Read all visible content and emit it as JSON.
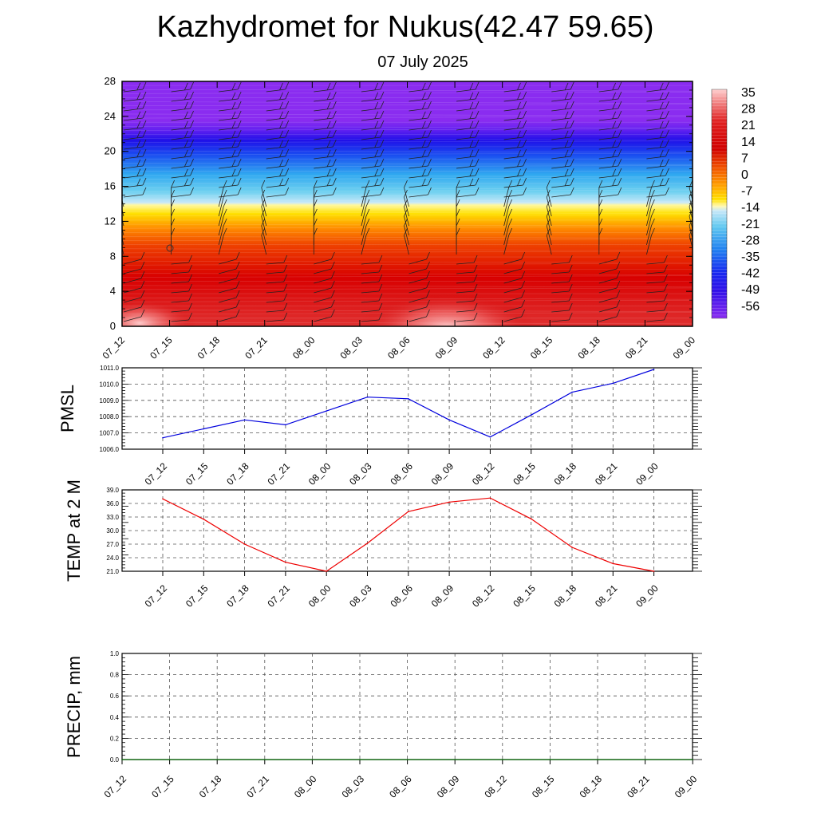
{
  "title": "Kazhydromet for Nukus(42.47 59.65)",
  "subtitle": "07 July 2025",
  "time_labels": [
    "07_12",
    "07_15",
    "07_18",
    "07_21",
    "08_00",
    "08_03",
    "08_06",
    "08_09",
    "08_12",
    "08_15",
    "08_18",
    "08_21",
    "09_00"
  ],
  "colors": {
    "pmsl_line": "#0000dd",
    "temp_line": "#ee0000",
    "precip_line": "#006400",
    "grid": "#555555"
  },
  "chart_data": [
    {
      "type": "heatmap",
      "ylim": [
        0,
        28
      ],
      "y_ticks": [
        0,
        4,
        8,
        12,
        16,
        20,
        24,
        28
      ],
      "x": [
        "07_12",
        "07_15",
        "07_18",
        "07_21",
        "08_00",
        "08_03",
        "08_06",
        "08_09",
        "08_12",
        "08_15",
        "08_18",
        "08_21",
        "09_00"
      ],
      "colorbar": {
        "labels": [
          "35",
          "28",
          "21",
          "14",
          "7",
          "0",
          "-7",
          "-14",
          "-21",
          "-28",
          "-35",
          "-42",
          "-49",
          "-56"
        ],
        "min": -60,
        "max": 38
      },
      "wind_barbs": true
    },
    {
      "type": "line",
      "ylabel": "PMSL",
      "ylim": [
        1006.0,
        1011.0
      ],
      "y_ticks": [
        "1006.0",
        "1007.0",
        "1008.0",
        "1009.0",
        "1010.0",
        "1011.0"
      ],
      "x": [
        "07_12",
        "07_15",
        "07_18",
        "07_21",
        "08_00",
        "08_03",
        "08_06",
        "08_09",
        "08_12",
        "08_15",
        "08_18",
        "08_21",
        "09_00"
      ],
      "values": [
        1006.7,
        1007.25,
        1007.8,
        1007.5,
        1008.35,
        1009.2,
        1009.1,
        1007.8,
        1006.75,
        1008.1,
        1009.5,
        1010.05,
        1010.9
      ]
    },
    {
      "type": "line",
      "ylabel": "TEMP at 2 M",
      "ylim": [
        21.0,
        39.0
      ],
      "y_ticks": [
        "21.0",
        "24.0",
        "27.0",
        "30.0",
        "33.0",
        "36.0",
        "39.0"
      ],
      "x": [
        "07_12",
        "07_15",
        "07_18",
        "07_21",
        "08_00",
        "08_03",
        "08_06",
        "08_09",
        "08_12",
        "08_15",
        "08_18",
        "08_21",
        "09_00"
      ],
      "values": [
        37.0,
        32.5,
        27.0,
        23.0,
        21.0,
        27.2,
        34.2,
        36.3,
        37.2,
        32.6,
        26.3,
        22.7,
        21.0
      ]
    },
    {
      "type": "line",
      "ylabel": "PRECIP, mm",
      "ylim": [
        0.0,
        1.0
      ],
      "y_ticks": [
        "0.0",
        "0.2",
        "0.4",
        "0.6",
        "0.8",
        "1.0"
      ],
      "x": [
        "07_12",
        "07_15",
        "07_18",
        "07_21",
        "08_00",
        "08_03",
        "08_06",
        "08_09",
        "08_12",
        "08_15",
        "08_18",
        "08_21",
        "09_00"
      ],
      "values": [
        0,
        0,
        0,
        0,
        0,
        0,
        0,
        0,
        0,
        0,
        0,
        0,
        0
      ]
    }
  ]
}
